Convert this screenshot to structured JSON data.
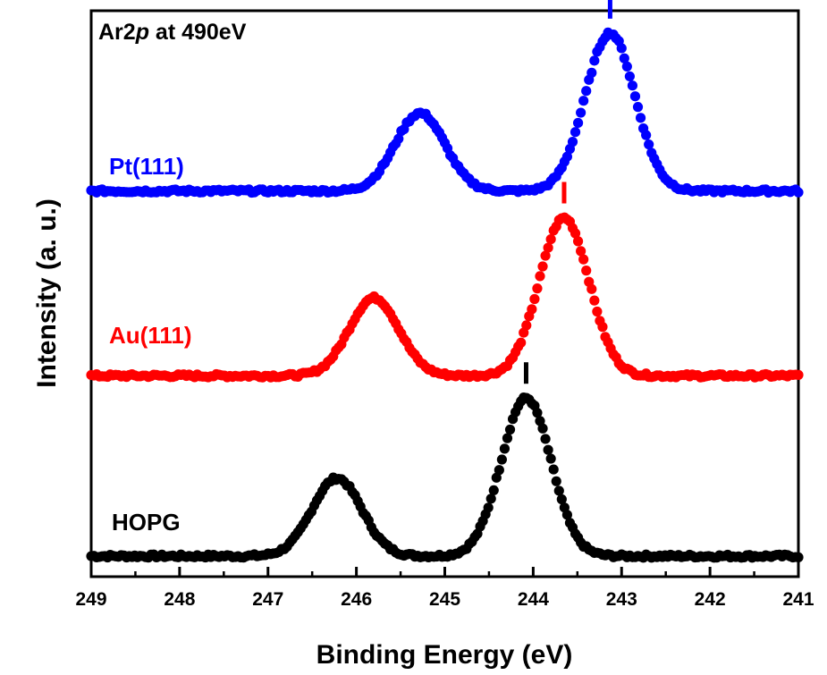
{
  "chart_data": {
    "type": "scatter",
    "title": {
      "prefix": "Ar2",
      "italic": "p",
      "suffix": " at 490eV"
    },
    "xlabel": "Binding Energy (eV)",
    "ylabel": "Intensity (a. u.)",
    "xlim": [
      249,
      241
    ],
    "x_reversed": true,
    "x_ticks": [
      "249",
      "248",
      "247",
      "246",
      "245",
      "244",
      "243",
      "242",
      "241"
    ],
    "y_ticks": false,
    "grid": false,
    "series": [
      {
        "name": "HOPG",
        "color": "#000000",
        "baseline": 0.0,
        "peaks": [
          {
            "center": 246.22,
            "height": 0.7,
            "sigma": 0.28
          },
          {
            "center": 244.08,
            "height": 1.42,
            "sigma": 0.28
          }
        ],
        "marker_position": 244.08
      },
      {
        "name": "Au(111)",
        "color": "#ff0000",
        "baseline": 1.62,
        "peaks": [
          {
            "center": 245.8,
            "height": 0.7,
            "sigma": 0.28
          },
          {
            "center": 243.65,
            "height": 1.42,
            "sigma": 0.28
          }
        ],
        "marker_position": 243.65
      },
      {
        "name": "Pt(111)",
        "color": "#0000ff",
        "baseline": 3.28,
        "peaks": [
          {
            "center": 245.28,
            "height": 0.7,
            "sigma": 0.28
          },
          {
            "center": 243.13,
            "height": 1.42,
            "sigma": 0.28
          }
        ],
        "marker_position": 243.13
      }
    ]
  }
}
